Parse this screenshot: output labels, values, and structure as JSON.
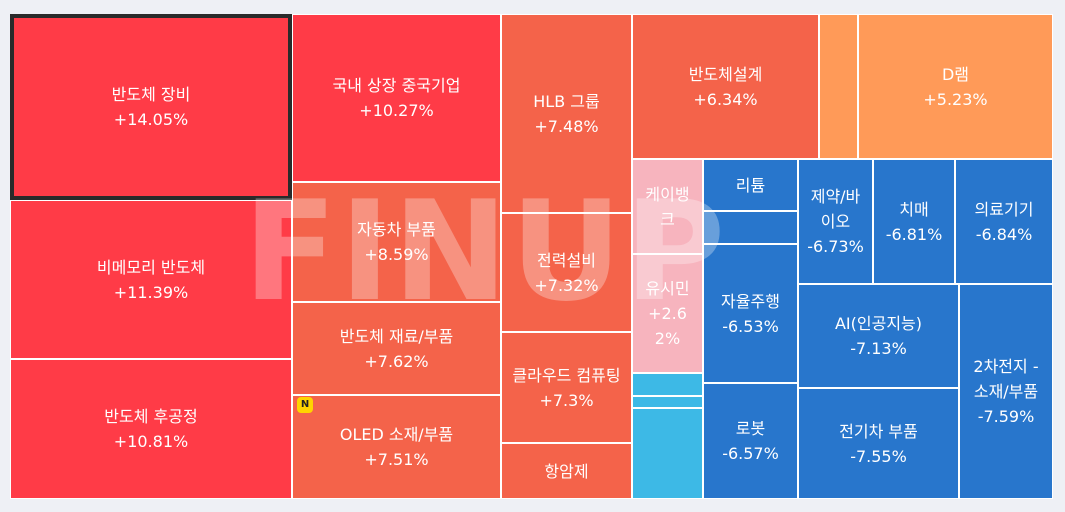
{
  "chart_data": {
    "type": "treemap",
    "unit": "%",
    "cells": [
      {
        "name": "반도체 장비",
        "value": "+14.05%",
        "change": 14.05,
        "color": "#ff3b47",
        "selected": true
      },
      {
        "name": "비메모리 반도체",
        "value": "+11.39%",
        "change": 11.39,
        "color": "#ff3b47"
      },
      {
        "name": "반도체 후공정",
        "value": "+10.81%",
        "change": 10.81,
        "color": "#ff3b47"
      },
      {
        "name": "국내 상장 중국기업",
        "value": "+10.27%",
        "change": 10.27,
        "color": "#ff3b47"
      },
      {
        "name": "자동차 부품",
        "value": "+8.59%",
        "change": 8.59,
        "color": "#f4634a"
      },
      {
        "name": "반도체 재료/부품",
        "value": "+7.62%",
        "change": 7.62,
        "color": "#f4634a"
      },
      {
        "name": "OLED 소재/부품",
        "value": "+7.51%",
        "change": 7.51,
        "color": "#f4634a"
      },
      {
        "name": "HLB 그룹",
        "value": "+7.48%",
        "change": 7.48,
        "color": "#f4634a"
      },
      {
        "name": "전력설비",
        "value": "+7.32%",
        "change": 7.32,
        "color": "#f4634a"
      },
      {
        "name": "클라우드 컴퓨팅",
        "value": "+7.3%",
        "change": 7.3,
        "color": "#f4634a"
      },
      {
        "name": "항암제",
        "value": "",
        "color": "#f4634a"
      },
      {
        "name": "반도체설계",
        "value": "+6.34%",
        "change": 6.34,
        "color": "#f4634a"
      },
      {
        "name": "",
        "value": "",
        "color": "#ff9a58"
      },
      {
        "name": "D램",
        "value": "+5.23%",
        "change": 5.23,
        "color": "#ff9a58"
      },
      {
        "name": "케이뱅\n크",
        "value": "",
        "color": "#f7b4be"
      },
      {
        "name": "유시민",
        "value": "+2.6\n2%",
        "change": 2.62,
        "color": "#f7b4be"
      },
      {
        "name": "",
        "value": "",
        "color": "#3db9e6"
      },
      {
        "name": "",
        "value": "",
        "color": "#3db9e6"
      },
      {
        "name": "",
        "value": "",
        "color": "#3db9e6"
      },
      {
        "name": "리튬",
        "value": "",
        "color": "#2876cc"
      },
      {
        "name": "",
        "value": "",
        "color": "#2876cc"
      },
      {
        "name": "자율주행",
        "value": "-6.53%",
        "change": -6.53,
        "color": "#2876cc"
      },
      {
        "name": "로봇",
        "value": "-6.57%",
        "change": -6.57,
        "color": "#2876cc"
      },
      {
        "name": "제약/바\n이오",
        "value": "-6.73%",
        "change": -6.73,
        "color": "#2876cc"
      },
      {
        "name": "치매",
        "value": "-6.81%",
        "change": -6.81,
        "color": "#2876cc"
      },
      {
        "name": "의료기기",
        "value": "-6.84%",
        "change": -6.84,
        "color": "#2876cc"
      },
      {
        "name": "AI(인공지능)",
        "value": "-7.13%",
        "change": -7.13,
        "color": "#2876cc"
      },
      {
        "name": "전기차 부품",
        "value": "-7.55%",
        "change": -7.55,
        "color": "#2876cc"
      },
      {
        "name": "2차전지 -\n소재/부품",
        "value": "-7.59%",
        "change": -7.59,
        "color": "#2876cc"
      }
    ]
  },
  "watermark": "FINUP",
  "badge": "N"
}
